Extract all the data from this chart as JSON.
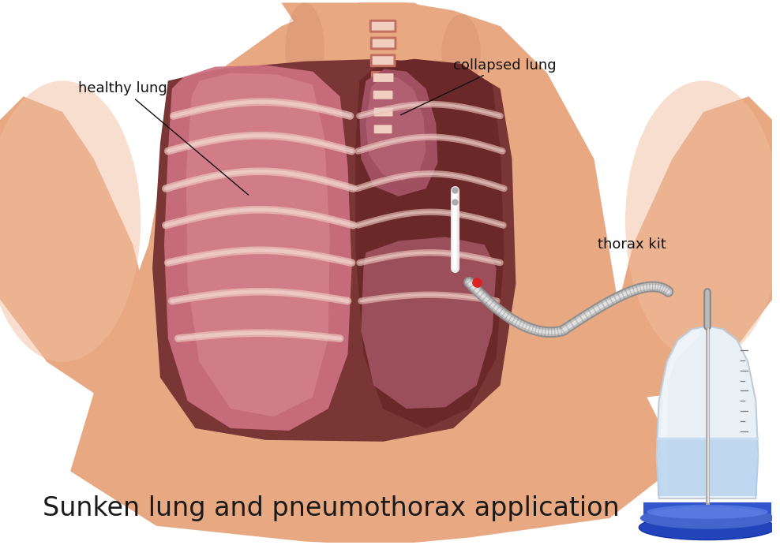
{
  "title": "Sunken lung and pneumothorax application",
  "label_healthy": "healthy lung",
  "label_collapsed": "collapsed lung",
  "label_thorax": "thorax kit",
  "bg_color": "#ffffff",
  "skin_base": "#e8a882",
  "skin_light": "#f0bfa0",
  "skin_dark": "#cc8866",
  "chest_dark": "#7a3535",
  "chest_mid": "#8b4545",
  "lung_pink": "#cc7080",
  "lung_pink_light": "#dd9098",
  "lung_dark": "#7a3040",
  "rib_light": "#e8c0b8",
  "rib_highlight": "#f5ddd8",
  "spine_light": "#f0cfc0",
  "spine_dark": "#c47060",
  "tube_gray": "#c0c0c0",
  "tube_light": "#e0e0e0",
  "tube_dark": "#909090",
  "kit_glass": "#e8f0f5",
  "kit_glass_edge": "#c0ccd8",
  "kit_liquid": "#aaccee",
  "kit_blue_base": "#3355cc",
  "kit_blue_light": "#6688dd",
  "title_fontsize": 24,
  "label_fontsize": 13
}
